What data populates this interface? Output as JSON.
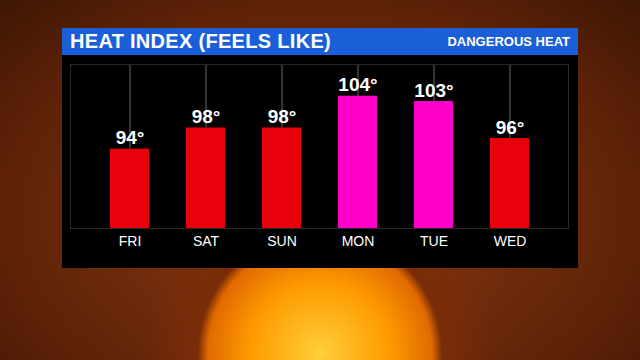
{
  "chart_data": {
    "type": "bar",
    "title": "HEAT INDEX (FEELS LIKE)",
    "subtitle": "DANGEROUS HEAT",
    "categories": [
      "FRI",
      "SAT",
      "SUN",
      "MON",
      "TUE",
      "WED"
    ],
    "values": [
      94,
      98,
      98,
      104,
      103,
      96
    ],
    "value_labels": [
      "94°",
      "98°",
      "98°",
      "104°",
      "103°",
      "96°"
    ],
    "colors": [
      "#e8000b",
      "#e8000b",
      "#e8000b",
      "#ff00c8",
      "#ff00c8",
      "#e8000b"
    ],
    "ylim": [
      79,
      110
    ],
    "data_labels": true,
    "tick_labels": "x"
  }
}
